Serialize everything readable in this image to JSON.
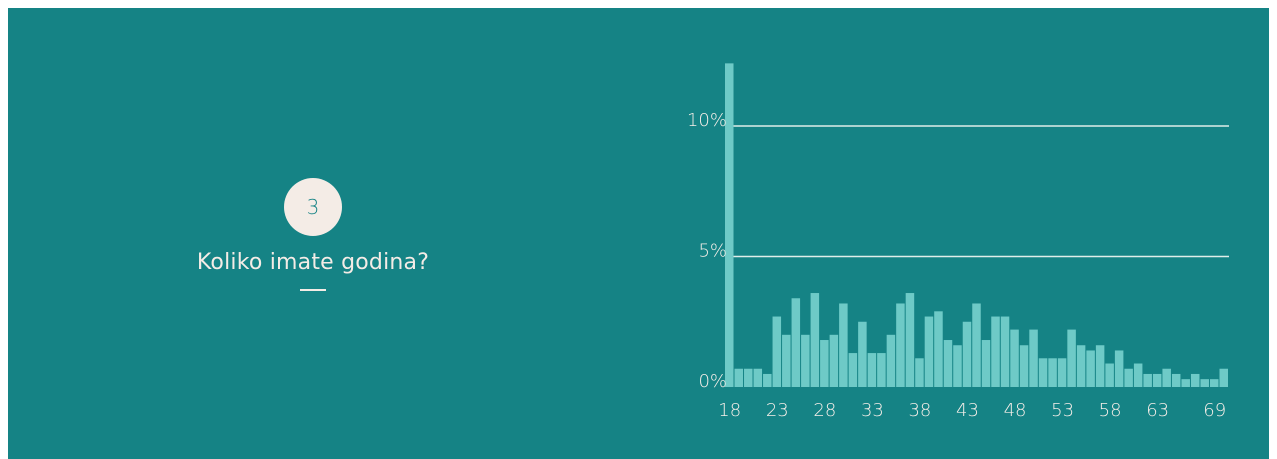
{
  "colors": {
    "panel": "#158385",
    "bar": "#6ecac7",
    "badge_bg": "#f4ece6",
    "badge_text": "#158385",
    "text": "#f4ece6",
    "grid": "#dfeeea"
  },
  "question": {
    "number": "3",
    "text": "Koliko imate godina?"
  },
  "chart_data": {
    "type": "bar",
    "x": [
      18,
      19,
      20,
      21,
      22,
      23,
      24,
      25,
      26,
      27,
      28,
      29,
      30,
      31,
      32,
      33,
      34,
      35,
      36,
      37,
      38,
      39,
      40,
      41,
      42,
      43,
      44,
      45,
      46,
      47,
      48,
      49,
      50,
      51,
      52,
      53,
      54,
      55,
      56,
      57,
      58,
      59,
      60,
      61,
      62,
      63,
      64,
      65,
      66,
      67,
      68,
      69,
      70
    ],
    "values": [
      12.4,
      0.7,
      0.7,
      0.7,
      0.5,
      2.7,
      2.0,
      3.4,
      2.0,
      3.6,
      1.8,
      2.0,
      3.2,
      1.3,
      2.5,
      1.3,
      1.3,
      2.0,
      3.2,
      3.6,
      1.1,
      2.7,
      2.9,
      1.8,
      1.6,
      2.5,
      3.2,
      1.8,
      2.7,
      2.7,
      2.2,
      1.6,
      2.2,
      1.1,
      1.1,
      1.1,
      2.2,
      1.6,
      1.4,
      1.6,
      0.9,
      1.4,
      0.7,
      0.9,
      0.5,
      0.5,
      0.7,
      0.5,
      0.3,
      0.5,
      0.3,
      0.3,
      0.7
    ],
    "tick_labels": [
      "18",
      "23",
      "28",
      "33",
      "38",
      "43",
      "48",
      "53",
      "58",
      "63",
      "69"
    ],
    "tick_values": [
      18,
      23,
      28,
      33,
      38,
      43,
      48,
      53,
      58,
      63,
      69
    ],
    "y_ticks": [
      {
        "value": 0,
        "label": "0%"
      },
      {
        "value": 5,
        "label": "5%"
      },
      {
        "value": 10,
        "label": "10%"
      }
    ],
    "ylim": [
      0,
      12.4
    ],
    "grid": true,
    "title": "",
    "xlabel": "",
    "ylabel": ""
  }
}
